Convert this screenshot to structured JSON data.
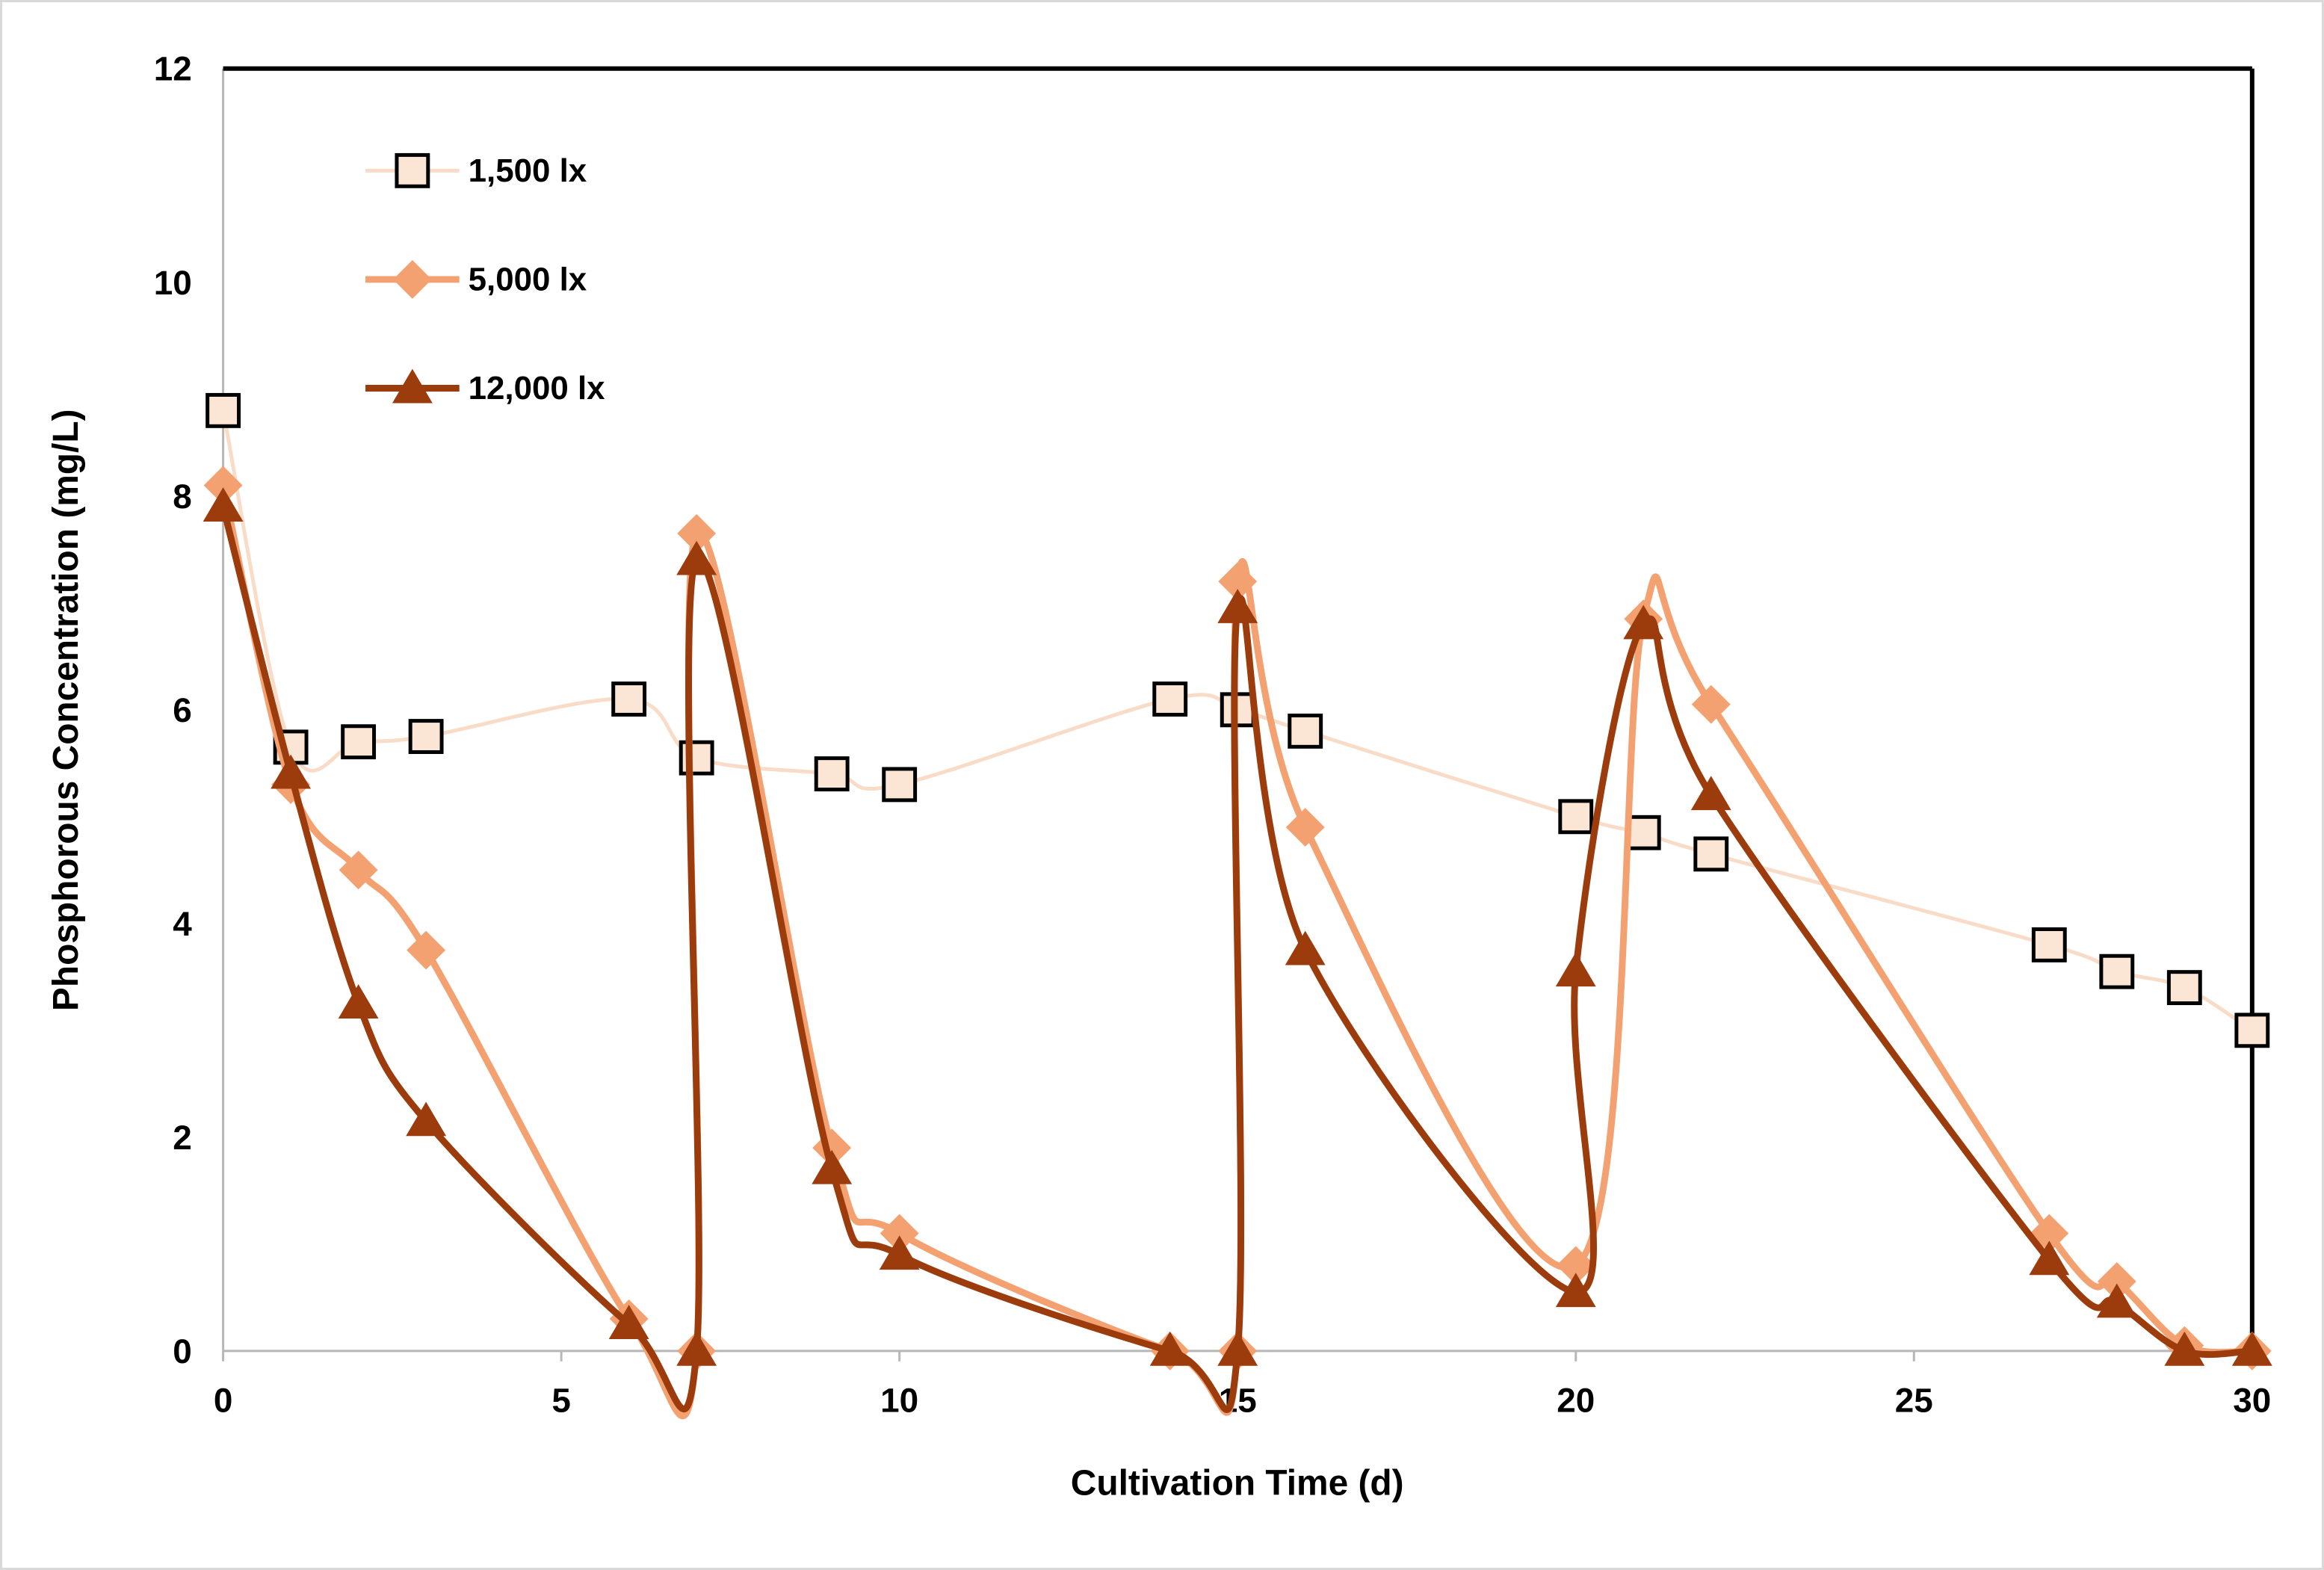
{
  "figure": {
    "background": "#FFFFFF",
    "outer_border_color": "#D9D9D9",
    "plot_border_top_right_color": "#000000",
    "axis_line_color": "#B7B7B7"
  },
  "chart_data": {
    "type": "line",
    "title": "",
    "xlabel": "Cultivation Time (d)",
    "ylabel": "Phosphorous Concentration (mg/L)",
    "xlim": [
      0,
      30
    ],
    "ylim": [
      0,
      12
    ],
    "x_ticks": [
      0,
      5,
      10,
      15,
      20,
      25,
      30
    ],
    "y_ticks": [
      0,
      2,
      4,
      6,
      8,
      10,
      12
    ],
    "grid": false,
    "line_smoothing": true,
    "legend_position": "top-left-inside",
    "series": [
      {
        "name": "1,500 lx",
        "marker": "square",
        "line_color": "#F8DCC8",
        "marker_fill": "#FBE5D4",
        "marker_edge": "#000000",
        "line_width": 5,
        "points": [
          [
            0,
            8.8
          ],
          [
            1,
            5.65
          ],
          [
            2,
            5.7
          ],
          [
            3,
            5.75
          ],
          [
            6,
            6.1
          ],
          [
            7,
            5.55
          ],
          [
            9,
            5.4
          ],
          [
            10,
            5.3
          ],
          [
            14,
            6.1
          ],
          [
            15,
            6.0
          ],
          [
            16,
            5.8
          ],
          [
            20,
            5.0
          ],
          [
            21,
            4.85
          ],
          [
            22,
            4.65
          ],
          [
            27,
            3.8
          ],
          [
            28,
            3.55
          ],
          [
            29,
            3.4
          ],
          [
            30,
            3.0
          ]
        ]
      },
      {
        "name": "5,000 lx",
        "marker": "diamond",
        "line_color": "#F4A171",
        "marker_fill": "#F4A171",
        "marker_edge": "#F4A171",
        "line_width": 9,
        "points": [
          [
            0,
            8.1
          ],
          [
            1,
            5.3
          ],
          [
            2,
            4.5
          ],
          [
            3,
            3.75
          ],
          [
            6,
            0.3
          ],
          [
            7,
            0
          ],
          [
            7,
            7.65
          ],
          [
            9,
            1.9
          ],
          [
            10,
            1.1
          ],
          [
            14,
            0
          ],
          [
            15,
            0
          ],
          [
            15,
            7.2
          ],
          [
            16,
            4.9
          ],
          [
            20,
            0.8
          ],
          [
            21,
            6.85
          ],
          [
            22,
            6.05
          ],
          [
            27,
            1.1
          ],
          [
            28,
            0.65
          ],
          [
            29,
            0.05
          ],
          [
            30,
            0
          ]
        ]
      },
      {
        "name": "12,000 lx",
        "marker": "triangle",
        "line_color": "#9C3B0C",
        "marker_fill": "#9C3B0C",
        "marker_edge": "#9C3B0C",
        "line_width": 9,
        "points": [
          [
            0,
            7.9
          ],
          [
            1,
            5.4
          ],
          [
            2,
            3.25
          ],
          [
            3,
            2.15
          ],
          [
            6,
            0.25
          ],
          [
            7,
            0
          ],
          [
            7,
            7.4
          ],
          [
            9,
            1.7
          ],
          [
            10,
            0.9
          ],
          [
            14,
            0
          ],
          [
            15,
            0
          ],
          [
            15,
            6.95
          ],
          [
            16,
            3.75
          ],
          [
            20,
            0.55
          ],
          [
            20,
            3.55
          ],
          [
            21,
            6.8
          ],
          [
            22,
            5.2
          ],
          [
            27,
            0.85
          ],
          [
            28,
            0.45
          ],
          [
            29,
            0
          ],
          [
            30,
            0
          ]
        ]
      }
    ]
  }
}
